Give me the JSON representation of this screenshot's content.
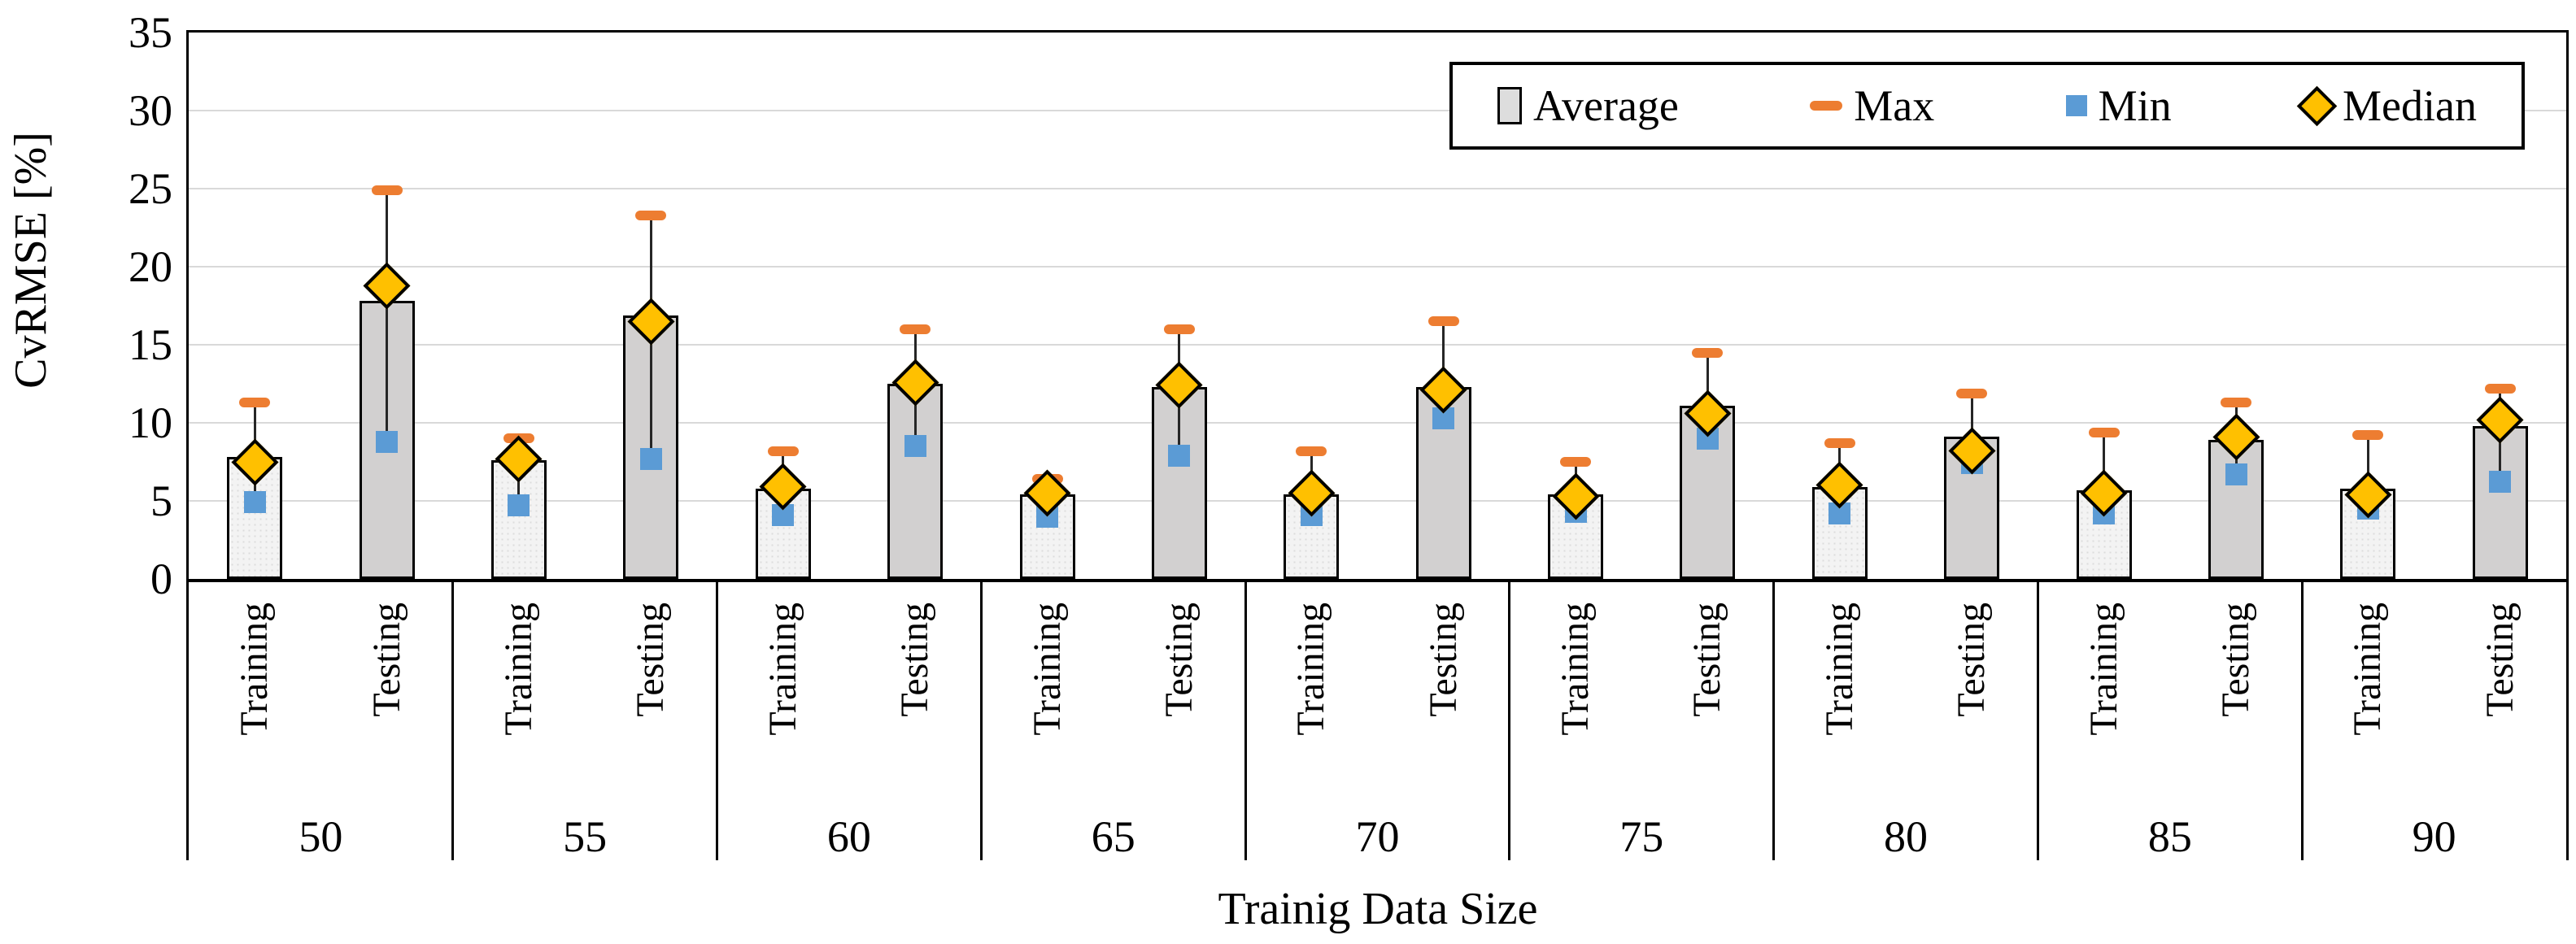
{
  "chart_data": {
    "type": "bar",
    "title": "",
    "xlabel": "Trainig Data Size",
    "ylabel": "CvRMSE [%]",
    "ylim": [
      0,
      35
    ],
    "ytick_step": 5,
    "grid": "horizontal-light-gray",
    "legend_position": "top-right-inside",
    "legend_items": [
      {
        "label": "Average",
        "marker": "gray-bar-swatch"
      },
      {
        "label": "Max",
        "marker": "orange-dash"
      },
      {
        "label": "Min",
        "marker": "blue-square"
      },
      {
        "label": "Median",
        "marker": "gold-diamond"
      }
    ],
    "sub_categories": [
      "Training",
      "Testing"
    ],
    "categories": [
      "50",
      "55",
      "60",
      "65",
      "70",
      "75",
      "80",
      "85",
      "90"
    ],
    "groups": [
      {
        "size": "50",
        "training": {
          "average": 7.8,
          "max": 11.3,
          "min": 4.9,
          "median": 7.5
        },
        "testing": {
          "average": 17.8,
          "max": 24.9,
          "min": 8.8,
          "median": 18.8
        }
      },
      {
        "size": "55",
        "training": {
          "average": 7.6,
          "max": 9.0,
          "min": 4.7,
          "median": 7.7
        },
        "testing": {
          "average": 16.9,
          "max": 23.3,
          "min": 7.7,
          "median": 16.5
        }
      },
      {
        "size": "60",
        "training": {
          "average": 5.8,
          "max": 8.2,
          "min": 4.1,
          "median": 5.9
        },
        "testing": {
          "average": 12.5,
          "max": 16.0,
          "min": 8.5,
          "median": 12.6
        }
      },
      {
        "size": "65",
        "training": {
          "average": 5.4,
          "max": 6.4,
          "min": 4.0,
          "median": 5.5
        },
        "testing": {
          "average": 12.3,
          "max": 16.0,
          "min": 7.9,
          "median": 12.4
        }
      },
      {
        "size": "70",
        "training": {
          "average": 5.4,
          "max": 8.2,
          "min": 4.1,
          "median": 5.5
        },
        "testing": {
          "average": 12.3,
          "max": 16.5,
          "min": 10.3,
          "median": 12.1
        }
      },
      {
        "size": "75",
        "training": {
          "average": 5.4,
          "max": 7.5,
          "min": 4.3,
          "median": 5.3
        },
        "testing": {
          "average": 11.1,
          "max": 14.5,
          "min": 9.0,
          "median": 10.6
        }
      },
      {
        "size": "80",
        "training": {
          "average": 5.9,
          "max": 8.7,
          "min": 4.2,
          "median": 6.0
        },
        "testing": {
          "average": 9.1,
          "max": 11.9,
          "min": 7.4,
          "median": 8.2
        }
      },
      {
        "size": "85",
        "training": {
          "average": 5.7,
          "max": 9.4,
          "min": 4.2,
          "median": 5.5
        },
        "testing": {
          "average": 8.9,
          "max": 11.3,
          "min": 6.7,
          "median": 9.1
        }
      },
      {
        "size": "90",
        "training": {
          "average": 5.8,
          "max": 9.2,
          "min": 4.5,
          "median": 5.4
        },
        "testing": {
          "average": 9.8,
          "max": 12.2,
          "min": 6.2,
          "median": 10.2
        }
      }
    ],
    "colors": {
      "average_fill_training": "#F3F3F3",
      "average_fill_testing": "#D2D0D0",
      "bar_outline": "#000000",
      "max_marker": "#ED7D31",
      "min_marker": "#5B9BD5",
      "median_marker": "#FFC000",
      "gridline": "#D9D9D9"
    }
  }
}
